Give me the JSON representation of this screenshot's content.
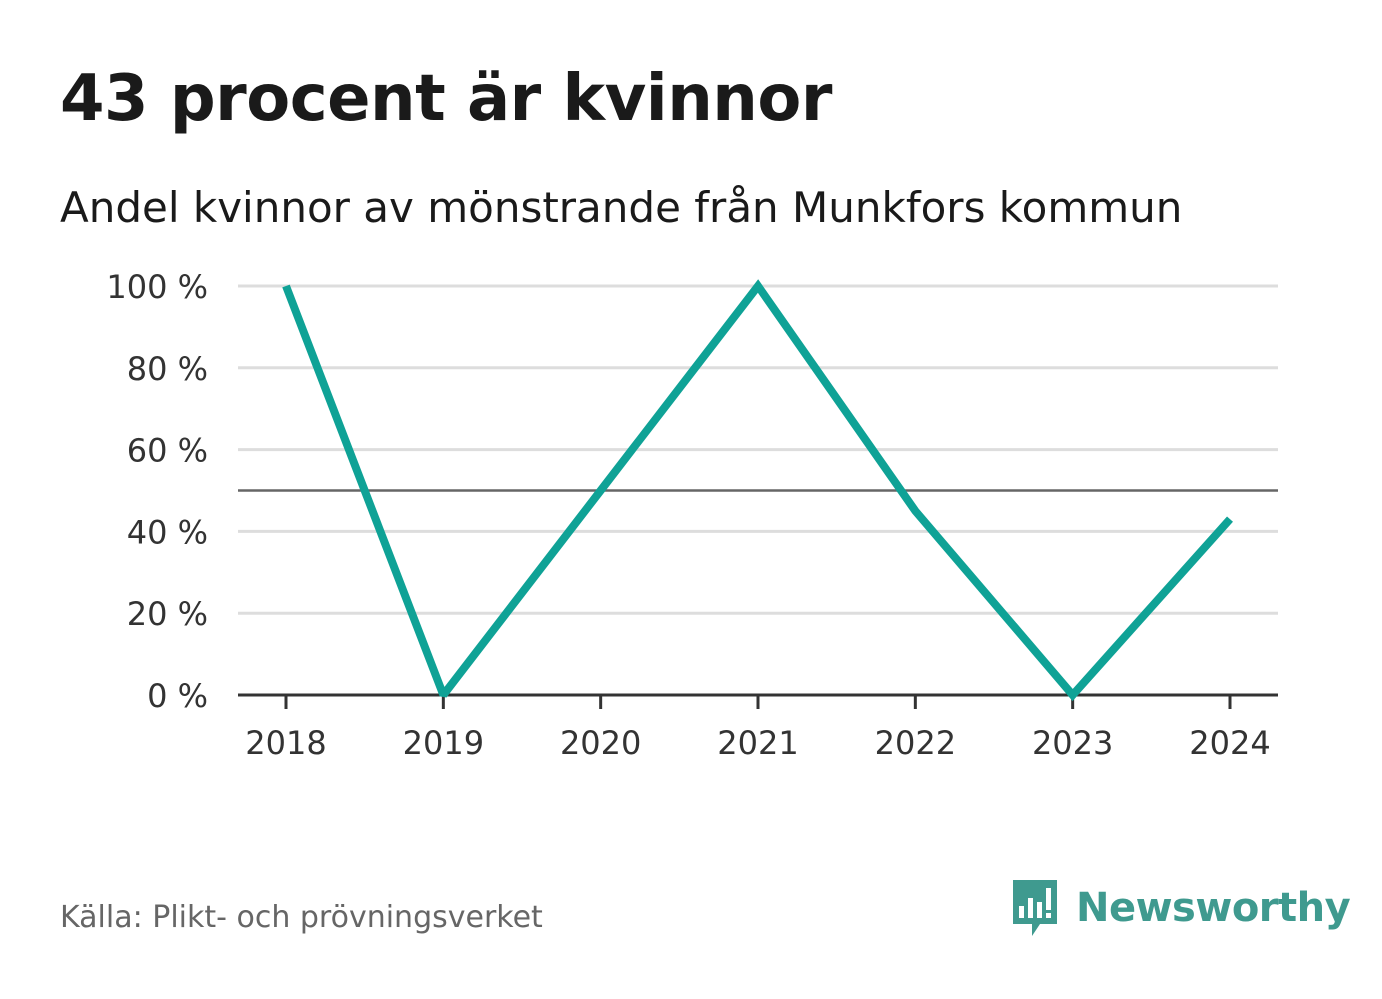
{
  "header": {
    "title": "43 procent är kvinnor",
    "subtitle": "Andel kvinnor av mönstrande från Munkfors kommun"
  },
  "footer": {
    "source": "Källa: Plikt- och prövningsverket",
    "brand": "Newsworthy",
    "brand_icon": "newsworthy-logo-icon"
  },
  "chart_data": {
    "type": "line",
    "title": "43 procent är kvinnor",
    "subtitle": "Andel kvinnor av mönstrande från Munkfors kommun",
    "xlabel": "",
    "ylabel": "",
    "x": [
      "2018",
      "2019",
      "2020",
      "2021",
      "2022",
      "2023",
      "2024"
    ],
    "series": [
      {
        "name": "Andel kvinnor",
        "values": [
          100,
          0,
          50,
          100,
          45,
          0,
          43
        ],
        "color": "#0fa296"
      }
    ],
    "reference_line": {
      "value": 50,
      "color": "#666666"
    },
    "ylim": [
      0,
      100
    ],
    "yticks": [
      0,
      20,
      40,
      60,
      80,
      100
    ],
    "ytick_labels": [
      "0 %",
      "20 %",
      "40 %",
      "60 %",
      "80 %",
      "100 %"
    ],
    "grid": true,
    "legend": "none"
  }
}
